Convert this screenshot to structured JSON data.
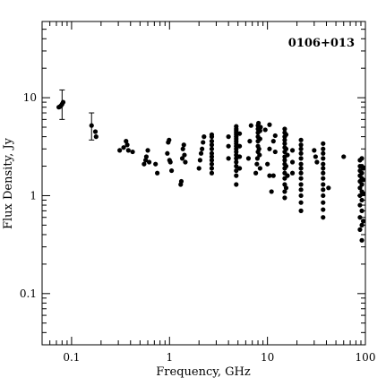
{
  "chart_data": {
    "type": "scatter",
    "annotation": "0106+013",
    "xlabel": "Frequency, GHz",
    "ylabel": "Flux Density, Jy",
    "x_scale": "log",
    "y_scale": "log",
    "xlim": [
      0.05,
      100
    ],
    "ylim": [
      0.03,
      60
    ],
    "x_ticks": [
      {
        "value": 0.1,
        "label": "0.1"
      },
      {
        "value": 1,
        "label": "1"
      },
      {
        "value": 10,
        "label": "10"
      },
      {
        "value": 100,
        "label": "100"
      }
    ],
    "y_ticks": [
      {
        "value": 0.1,
        "label": "0.1"
      },
      {
        "value": 1,
        "label": "1"
      },
      {
        "value": 10,
        "label": "10"
      }
    ],
    "grid": false,
    "error_bars": [
      {
        "x": 0.08,
        "y": 8.5,
        "ylow": 6.0,
        "yhigh": 12.0
      },
      {
        "x": 0.16,
        "y": 5.2,
        "ylow": 3.7,
        "yhigh": 7.0
      }
    ],
    "points": [
      [
        0.074,
        8.0
      ],
      [
        0.076,
        8.1
      ],
      [
        0.078,
        8.3
      ],
      [
        0.08,
        8.6
      ],
      [
        0.082,
        9.0
      ],
      [
        0.16,
        5.2
      ],
      [
        0.175,
        4.5
      ],
      [
        0.178,
        4.0
      ],
      [
        0.31,
        2.9
      ],
      [
        0.34,
        3.1
      ],
      [
        0.36,
        3.6
      ],
      [
        0.37,
        3.3
      ],
      [
        0.38,
        2.9
      ],
      [
        0.42,
        2.8
      ],
      [
        0.55,
        2.1
      ],
      [
        0.57,
        2.3
      ],
      [
        0.58,
        2.5
      ],
      [
        0.6,
        2.9
      ],
      [
        0.62,
        2.2
      ],
      [
        0.72,
        2.1
      ],
      [
        0.75,
        1.7
      ],
      [
        0.95,
        2.7
      ],
      [
        0.97,
        3.5
      ],
      [
        0.99,
        3.7
      ],
      [
        1.0,
        2.3
      ],
      [
        1.02,
        2.2
      ],
      [
        1.05,
        1.8
      ],
      [
        1.3,
        1.3
      ],
      [
        1.32,
        1.4
      ],
      [
        1.35,
        2.4
      ],
      [
        1.37,
        3.0
      ],
      [
        1.4,
        3.3
      ],
      [
        1.42,
        2.6
      ],
      [
        1.45,
        2.2
      ],
      [
        2.0,
        1.9
      ],
      [
        2.05,
        2.3
      ],
      [
        2.1,
        2.7
      ],
      [
        2.15,
        3.0
      ],
      [
        2.2,
        3.5
      ],
      [
        2.25,
        4.0
      ],
      [
        2.7,
        1.7
      ],
      [
        2.7,
        1.9
      ],
      [
        2.7,
        2.1
      ],
      [
        2.7,
        2.3
      ],
      [
        2.7,
        2.5
      ],
      [
        2.7,
        2.7
      ],
      [
        2.7,
        3.0
      ],
      [
        2.7,
        3.3
      ],
      [
        2.7,
        3.6
      ],
      [
        2.7,
        4.0
      ],
      [
        2.7,
        4.2
      ],
      [
        4.0,
        2.4
      ],
      [
        4.0,
        3.2
      ],
      [
        4.0,
        4.0
      ],
      [
        4.8,
        1.3
      ],
      [
        4.8,
        1.6
      ],
      [
        4.8,
        1.8
      ],
      [
        4.8,
        2.0
      ],
      [
        4.8,
        2.2
      ],
      [
        4.8,
        2.4
      ],
      [
        4.8,
        2.6
      ],
      [
        4.8,
        2.8
      ],
      [
        4.8,
        3.0
      ],
      [
        4.8,
        3.2
      ],
      [
        4.8,
        3.4
      ],
      [
        4.8,
        3.6
      ],
      [
        4.8,
        3.8
      ],
      [
        4.8,
        4.0
      ],
      [
        4.8,
        4.2
      ],
      [
        4.8,
        4.4
      ],
      [
        4.8,
        4.6
      ],
      [
        4.8,
        4.8
      ],
      [
        4.8,
        5.1
      ],
      [
        5.2,
        1.9
      ],
      [
        5.2,
        2.5
      ],
      [
        5.2,
        3.2
      ],
      [
        5.2,
        4.3
      ],
      [
        6.4,
        2.4
      ],
      [
        6.6,
        3.6
      ],
      [
        6.8,
        5.2
      ],
      [
        7.6,
        1.7
      ],
      [
        7.8,
        2.1
      ],
      [
        7.9,
        2.4
      ],
      [
        8.0,
        2.8
      ],
      [
        8.0,
        3.2
      ],
      [
        8.0,
        3.6
      ],
      [
        8.0,
        4.0
      ],
      [
        8.0,
        4.4
      ],
      [
        8.0,
        4.8
      ],
      [
        8.0,
        5.2
      ],
      [
        8.1,
        5.5
      ],
      [
        8.2,
        3.0
      ],
      [
        8.3,
        2.6
      ],
      [
        8.4,
        1.9
      ],
      [
        8.4,
        3.8
      ],
      [
        8.4,
        4.6
      ],
      [
        8.5,
        5.0
      ],
      [
        9.5,
        4.7
      ],
      [
        10.0,
        2.1
      ],
      [
        10.5,
        1.6
      ],
      [
        10.5,
        3.0
      ],
      [
        10.5,
        5.3
      ],
      [
        11.0,
        1.1
      ],
      [
        11.5,
        1.6
      ],
      [
        11.5,
        3.6
      ],
      [
        12.0,
        2.8
      ],
      [
        12.0,
        4.1
      ],
      [
        15.0,
        0.95
      ],
      [
        15.0,
        1.1
      ],
      [
        15.0,
        1.3
      ],
      [
        15.0,
        1.5
      ],
      [
        15.0,
        1.7
      ],
      [
        15.0,
        1.9
      ],
      [
        15.0,
        2.1
      ],
      [
        15.0,
        2.3
      ],
      [
        15.0,
        2.5
      ],
      [
        15.0,
        2.8
      ],
      [
        15.0,
        3.1
      ],
      [
        15.0,
        3.4
      ],
      [
        15.0,
        3.7
      ],
      [
        15.0,
        4.0
      ],
      [
        15.0,
        4.4
      ],
      [
        15.0,
        4.8
      ],
      [
        15.5,
        1.2
      ],
      [
        15.5,
        2.0
      ],
      [
        15.5,
        3.0
      ],
      [
        15.5,
        4.2
      ],
      [
        16.0,
        1.6
      ],
      [
        16.0,
        2.6
      ],
      [
        18.0,
        1.7
      ],
      [
        18.0,
        2.2
      ],
      [
        18.0,
        2.9
      ],
      [
        22.0,
        0.7
      ],
      [
        22.0,
        0.85
      ],
      [
        22.0,
        1.0
      ],
      [
        22.0,
        1.15
      ],
      [
        22.0,
        1.3
      ],
      [
        22.0,
        1.5
      ],
      [
        22.0,
        1.7
      ],
      [
        22.0,
        1.9
      ],
      [
        22.0,
        2.1
      ],
      [
        22.0,
        2.4
      ],
      [
        22.0,
        2.7
      ],
      [
        22.0,
        3.0
      ],
      [
        22.0,
        3.3
      ],
      [
        22.0,
        3.7
      ],
      [
        30.0,
        2.9
      ],
      [
        31.0,
        2.5
      ],
      [
        32.0,
        2.2
      ],
      [
        37.0,
        0.6
      ],
      [
        37.0,
        0.72
      ],
      [
        37.0,
        0.85
      ],
      [
        37.0,
        1.0
      ],
      [
        37.0,
        1.15
      ],
      [
        37.0,
        1.3
      ],
      [
        37.0,
        1.5
      ],
      [
        37.0,
        1.7
      ],
      [
        37.0,
        1.9
      ],
      [
        37.0,
        2.1
      ],
      [
        37.0,
        2.4
      ],
      [
        37.0,
        2.7
      ],
      [
        37.0,
        3.0
      ],
      [
        37.0,
        3.4
      ],
      [
        42.0,
        1.2
      ],
      [
        60.0,
        2.5
      ],
      [
        88.0,
        0.45
      ],
      [
        88.0,
        0.6
      ],
      [
        88.0,
        0.8
      ],
      [
        88.0,
        1.0
      ],
      [
        88.0,
        1.2
      ],
      [
        88.0,
        1.4
      ],
      [
        88.0,
        1.6
      ],
      [
        88.0,
        1.8
      ],
      [
        88.0,
        2.0
      ],
      [
        88.0,
        2.3
      ],
      [
        92.0,
        0.35
      ],
      [
        92.0,
        0.5
      ],
      [
        92.0,
        0.7
      ],
      [
        92.0,
        0.9
      ],
      [
        92.0,
        1.1
      ],
      [
        92.0,
        1.3
      ],
      [
        92.0,
        1.5
      ],
      [
        92.0,
        1.7
      ],
      [
        92.0,
        2.0
      ],
      [
        92.0,
        2.4
      ],
      [
        95.0,
        0.55
      ],
      [
        95.0,
        1.05
      ],
      [
        95.0,
        1.45
      ],
      [
        95.0,
        1.9
      ]
    ]
  }
}
